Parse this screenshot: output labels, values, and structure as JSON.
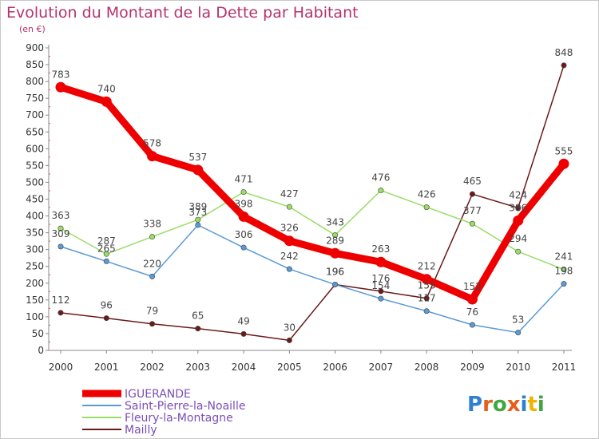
{
  "chart_data": {
    "type": "line",
    "title": "Evolution du Montant de la Dette par Habitant",
    "subtitle": "(en €)",
    "x": [
      "2000",
      "2001",
      "2002",
      "2003",
      "2004",
      "2005",
      "2006",
      "2007",
      "2008",
      "2009",
      "2010",
      "2011"
    ],
    "yticks": [
      0,
      50,
      100,
      150,
      200,
      250,
      300,
      350,
      400,
      450,
      500,
      550,
      600,
      650,
      700,
      750,
      800,
      850,
      900
    ],
    "ylim": [
      0,
      900
    ],
    "grid": false,
    "legend_position": "bottom-left",
    "series": [
      {
        "name": "IGUERANDE",
        "color": "#ee0000",
        "values": [
          783,
          740,
          578,
          537,
          398,
          326,
          289,
          263,
          212,
          152,
          386,
          555
        ]
      },
      {
        "name": "Saint-Pierre-la-Noaille",
        "color": "#5b9bd5",
        "values": [
          309,
          265,
          220,
          373,
          306,
          242,
          196,
          154,
          117,
          76,
          53,
          198
        ]
      },
      {
        "name": "Fleury-la-Montagne",
        "color": "#99dd66",
        "values": [
          363,
          287,
          338,
          389,
          471,
          427,
          343,
          476,
          426,
          377,
          294,
          241
        ]
      },
      {
        "name": "Mailly",
        "color": "#6b1a1a",
        "values": [
          112,
          96,
          79,
          65,
          49,
          30,
          196,
          176,
          155,
          465,
          424,
          848
        ]
      }
    ],
    "logo_text": "Proxiti"
  }
}
